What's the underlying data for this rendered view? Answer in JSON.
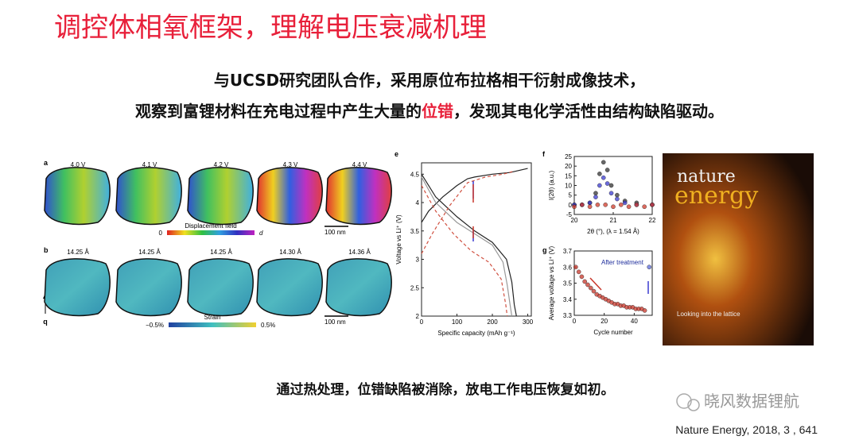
{
  "title": "调控体相氧框架，理解电压衰减机理",
  "intro": {
    "line1": "与UCSD研究团队合作，采用原位布拉格相干衍射成像技术，",
    "line2_before": "观察到富锂材料在充电过程中产生大量的",
    "line2_highlight": "位错",
    "line2_after": "，发现其电化学活性由结构缺陷驱动。"
  },
  "figure": {
    "panel_a": {
      "label": "a",
      "captions": [
        "4.0 V",
        "4.1 V",
        "4.2 V",
        "4.3 V",
        "4.4 V"
      ],
      "colorbar": "Displacement field",
      "colorbar_min": "0",
      "colorbar_max": "d",
      "scale": "100 nm"
    },
    "panel_b": {
      "label": "b",
      "captions": [
        "14.25 Å",
        "14.25 Å",
        "14.25 Å",
        "14.30 Å",
        "14.36 Å"
      ],
      "colorbar": "Strain",
      "colorbar_min": "−0.5%",
      "colorbar_max": "0.5%",
      "scale": "100 nm",
      "axis": "q"
    },
    "panel_e": {
      "label": "e",
      "x_label": "Specific capacity (mAh g⁻¹)",
      "y_label": "Voltage vs Li⁺ (V)",
      "xlim": [
        0,
        310
      ],
      "xticks": [
        0,
        100,
        200,
        300
      ],
      "ylim": [
        2,
        4.7
      ],
      "yticks": [
        2,
        2.5,
        3,
        3.5,
        4,
        4.5
      ],
      "series": [
        {
          "color": "#222222",
          "x": [
            0,
            20,
            60,
            100,
            130,
            150,
            200,
            250,
            300
          ],
          "values": [
            3.65,
            3.85,
            4.1,
            4.3,
            4.42,
            4.45,
            4.5,
            4.53,
            4.6
          ]
        },
        {
          "color": "#222222",
          "x": [
            0,
            40,
            100,
            150,
            200,
            240,
            255,
            262,
            268
          ],
          "values": [
            4.5,
            4.1,
            3.75,
            3.5,
            3.3,
            3.0,
            2.6,
            2.2,
            2
          ]
        },
        {
          "color": "#999999",
          "x": [
            0,
            40,
            100,
            150,
            200,
            230,
            242,
            250,
            255
          ],
          "values": [
            4.45,
            4.0,
            3.65,
            3.45,
            3.25,
            2.95,
            2.55,
            2.2,
            2
          ]
        },
        {
          "color": "#d05040",
          "dash": true,
          "x": [
            0,
            30,
            80,
            130,
            180,
            230,
            260
          ],
          "values": [
            3.1,
            3.45,
            3.95,
            4.35,
            4.45,
            4.5,
            4.55
          ]
        },
        {
          "color": "#d05040",
          "dash": true,
          "x": [
            0,
            40,
            90,
            140,
            190,
            225,
            238,
            242
          ],
          "values": [
            4.3,
            3.85,
            3.45,
            3.15,
            2.95,
            2.65,
            2.2,
            2
          ]
        }
      ]
    },
    "panel_f": {
      "label": "f",
      "x_label": "2θ (°), (λ = 1.54 Å)",
      "y_label": "I(2θ) (a.u.)",
      "xlim": [
        20,
        22
      ],
      "xticks": [
        20,
        21,
        22
      ],
      "ylim": [
        -5,
        25
      ],
      "yticks": [
        -5,
        0,
        5,
        10,
        15,
        20,
        25
      ],
      "series": [
        {
          "color": "#333333",
          "marker": true,
          "x": [
            20,
            20.2,
            20.4,
            20.55,
            20.65,
            20.75,
            20.85,
            20.95,
            21.1,
            21.3,
            21.6,
            22
          ],
          "values": [
            0,
            0,
            1,
            6,
            16,
            22,
            18,
            10,
            5,
            2,
            1,
            0
          ]
        },
        {
          "color": "#3a3ad0",
          "marker": true,
          "x": [
            20,
            20.2,
            20.4,
            20.55,
            20.65,
            20.75,
            20.85,
            20.95,
            21.1,
            21.3,
            21.6,
            22
          ],
          "values": [
            0,
            0,
            1,
            4,
            10,
            14,
            11,
            6,
            3,
            1,
            0,
            0
          ]
        },
        {
          "color": "#d03a2a",
          "marker": true,
          "x": [
            20,
            20.2,
            20.4,
            20.6,
            20.8,
            21,
            21.2,
            21.4,
            21.6,
            21.8,
            22
          ],
          "values": [
            -1,
            0,
            -1,
            0,
            0,
            -1,
            0,
            -1,
            0,
            -1,
            0
          ]
        }
      ]
    },
    "panel_g": {
      "label": "g",
      "x_label": "Cycle number",
      "y_label": "Average voltage vs Li⁺ (V)",
      "annotation": "After treatment",
      "xlim": [
        0,
        52
      ],
      "xticks": [
        0,
        20,
        40
      ],
      "ylim": [
        3.3,
        3.7
      ],
      "yticks": [
        3.3,
        3.4,
        3.5,
        3.6,
        3.7
      ],
      "series": [
        {
          "color": "#c8362a",
          "marker": true,
          "x": [
            1,
            3,
            5,
            7,
            9,
            11,
            13,
            15,
            17,
            19,
            21,
            23,
            25,
            27,
            29,
            31,
            33,
            35,
            37,
            39,
            41,
            43,
            45,
            47
          ],
          "values": [
            3.6,
            3.57,
            3.54,
            3.51,
            3.49,
            3.47,
            3.45,
            3.43,
            3.42,
            3.41,
            3.4,
            3.39,
            3.38,
            3.37,
            3.37,
            3.36,
            3.36,
            3.35,
            3.35,
            3.35,
            3.34,
            3.34,
            3.34,
            3.33
          ]
        },
        {
          "color": "#5a6ad8",
          "marker": true,
          "x": [
            50
          ],
          "values": [
            3.6
          ]
        }
      ]
    },
    "cover": {
      "line1": "nature",
      "line2": "energy",
      "tagline": "Looking into the lattice"
    }
  },
  "bottom_text": "通过热处理，位错缺陷被消除，放电工作电压恢复如初。",
  "watermark": "晓风数据锂航",
  "citation": "Nature Energy, 2018, 3 , 641"
}
